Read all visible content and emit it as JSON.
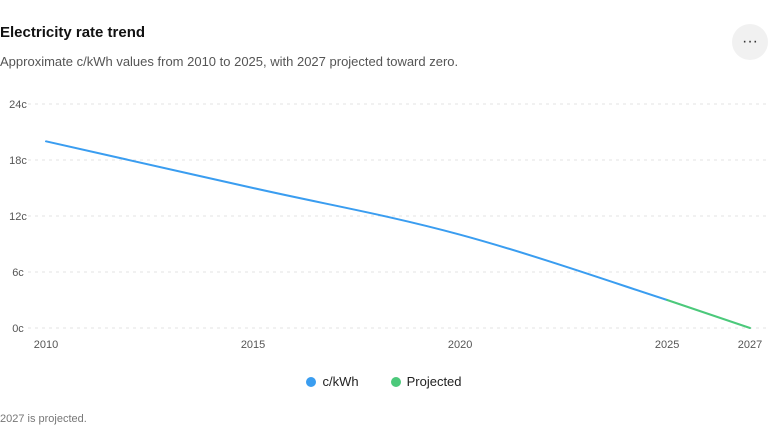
{
  "header": {
    "title": "Electricity rate trend",
    "subtitle": "Approximate c/kWh values from 2010 to 2025, with 2027 projected toward zero.",
    "more_label": "···"
  },
  "footnote": "2027 is projected.",
  "chart_data": {
    "type": "line",
    "title": "Electricity rate trend",
    "xlabel": "",
    "ylabel": "",
    "xlim": [
      2010,
      2027
    ],
    "ylim": [
      0,
      24
    ],
    "x_ticks": [
      "2010",
      "2015",
      "2020",
      "2025",
      "2027"
    ],
    "y_ticks": [
      "0c",
      "6c",
      "12c",
      "18c",
      "24c"
    ],
    "grid": true,
    "legend_position": "bottom",
    "series": [
      {
        "name": "c/kWh",
        "color": "#3a9df0",
        "x": [
          2010,
          2015,
          2020,
          2025
        ],
        "y": [
          20,
          15,
          10,
          3
        ]
      },
      {
        "name": "Projected",
        "color": "#4cc97b",
        "x": [
          2025,
          2027
        ],
        "y": [
          3,
          0
        ]
      }
    ]
  }
}
